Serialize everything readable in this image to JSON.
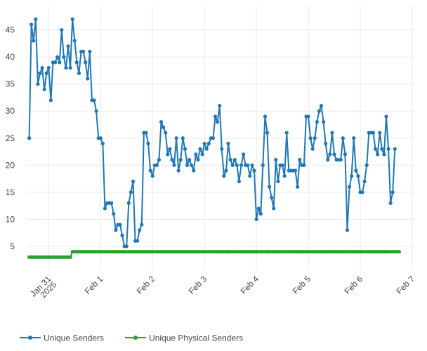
{
  "chart_data": {
    "type": "line",
    "x_axis": {
      "ticks": [
        {
          "date": "2025-01-31",
          "label": "Jan 31",
          "sublabel": "2025"
        },
        {
          "date": "2025-02-01",
          "label": "Feb 1"
        },
        {
          "date": "2025-02-02",
          "label": "Feb 2"
        },
        {
          "date": "2025-02-03",
          "label": "Feb 3"
        },
        {
          "date": "2025-02-04",
          "label": "Feb 4"
        },
        {
          "date": "2025-02-05",
          "label": "Feb 5"
        },
        {
          "date": "2025-02-06",
          "label": "Feb 6"
        },
        {
          "date": "2025-02-07",
          "label": "Feb 7"
        }
      ],
      "range": [
        "2025-01-30T13:50",
        "2025-02-07T01:00"
      ]
    },
    "y_axis": {
      "ticks": [
        5,
        10,
        15,
        20,
        25,
        30,
        35,
        40,
        45
      ],
      "range": [
        0.7,
        49.5
      ]
    },
    "grid": true,
    "legend_position": "bottom-left",
    "series": [
      {
        "name": "Unique Senders",
        "color": "#1f77b4",
        "x_start": "2025-01-30T15:00",
        "x_step_hours": 1,
        "values": [
          25,
          46,
          43,
          47,
          35,
          37,
          38,
          34,
          37,
          38,
          32,
          39,
          39,
          40,
          39,
          45,
          40,
          38,
          42,
          38,
          47,
          43,
          39,
          37,
          41,
          41,
          39,
          36,
          41,
          32,
          32,
          30,
          25,
          25,
          24,
          12,
          13,
          13,
          13,
          11,
          8,
          9,
          9,
          7,
          5,
          5,
          13,
          15,
          17,
          6,
          6,
          8,
          9,
          26,
          26,
          24,
          19,
          18,
          20,
          20,
          21,
          28,
          27,
          26,
          22,
          23,
          21,
          20,
          25,
          19,
          21,
          25,
          23,
          20,
          21,
          20,
          19,
          22,
          21,
          23,
          22,
          24,
          23,
          24,
          25,
          25,
          29,
          28,
          31,
          23,
          18,
          19,
          24,
          21,
          20,
          21,
          20,
          17,
          20,
          22,
          20,
          20,
          18,
          20,
          19,
          10,
          12,
          11,
          20,
          29,
          26,
          16,
          14,
          12,
          21,
          17,
          20,
          20,
          18,
          26,
          19,
          19,
          19,
          19,
          16,
          21,
          20,
          20,
          29,
          29,
          25,
          23,
          25,
          28,
          30,
          31,
          28,
          24,
          21,
          22,
          26,
          22,
          21,
          21,
          21,
          25,
          22,
          8,
          16,
          18,
          25,
          19,
          18,
          15,
          15,
          17,
          20,
          26,
          26,
          26,
          23,
          22,
          26,
          23,
          22,
          29,
          23,
          13,
          15,
          23
        ]
      },
      {
        "name": "Unique Physical Senders",
        "color": "#2ca02c",
        "x_start": "2025-01-30T15:00",
        "x_step_hours": 1,
        "values": [
          3,
          3,
          3,
          3,
          3,
          3,
          3,
          3,
          3,
          3,
          3,
          3,
          3,
          3,
          3,
          3,
          3,
          3,
          3,
          3,
          4,
          4,
          4,
          4,
          4,
          4,
          4,
          4,
          4,
          4,
          4,
          4,
          4,
          4,
          4,
          4,
          4,
          4,
          4,
          4,
          4,
          4,
          4,
          4,
          4,
          4,
          4,
          4,
          4,
          4,
          4,
          4,
          4,
          4,
          4,
          4,
          4,
          4,
          4,
          4,
          4,
          4,
          4,
          4,
          4,
          4,
          4,
          4,
          4,
          4,
          4,
          4,
          4,
          4,
          4,
          4,
          4,
          4,
          4,
          4,
          4,
          4,
          4,
          4,
          4,
          4,
          4,
          4,
          4,
          4,
          4,
          4,
          4,
          4,
          4,
          4,
          4,
          4,
          4,
          4,
          4,
          4,
          4,
          4,
          4,
          4,
          4,
          4,
          4,
          4,
          4,
          4,
          4,
          4,
          4,
          4,
          4,
          4,
          4,
          4,
          4,
          4,
          4,
          4,
          4,
          4,
          4,
          4,
          4,
          4,
          4,
          4,
          4,
          4,
          4,
          4,
          4,
          4,
          4,
          4,
          4,
          4,
          4,
          4,
          4,
          4,
          4,
          4,
          4,
          4,
          4,
          4,
          4,
          4,
          4,
          4,
          4,
          4,
          4,
          4,
          4,
          4,
          4,
          4,
          4,
          4,
          4,
          4,
          4,
          4,
          4,
          4
        ]
      }
    ]
  }
}
